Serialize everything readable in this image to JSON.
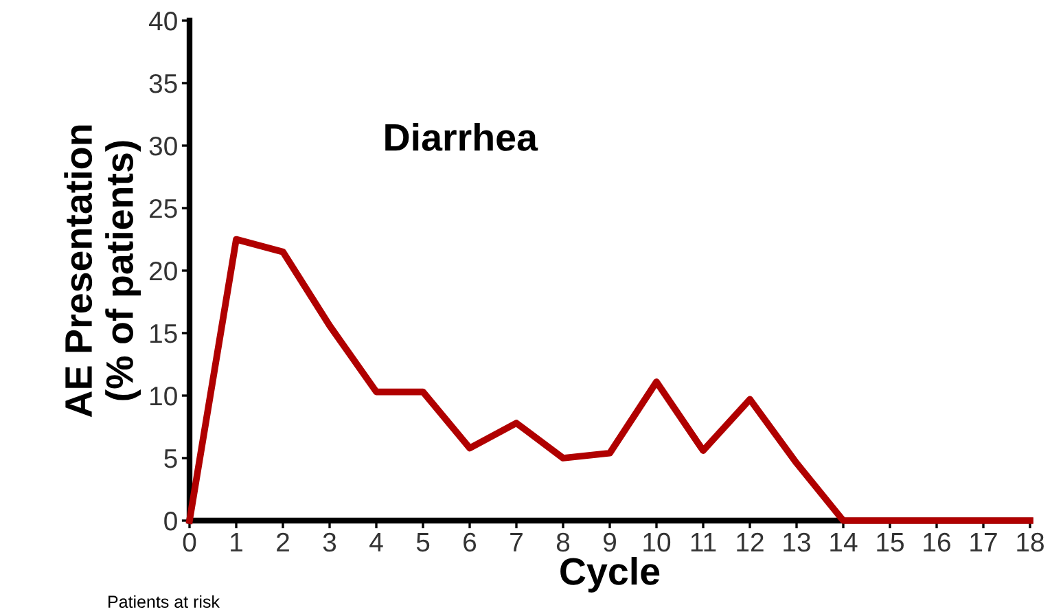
{
  "chart_data": {
    "type": "line",
    "title": "Diarrhea",
    "xlabel": "Cycle",
    "ylabel": "AE Presentation\n(% of patients)",
    "x": [
      0,
      1,
      2,
      3,
      4,
      5,
      6,
      7,
      8,
      9,
      10,
      11,
      12,
      13,
      14,
      15,
      16,
      17,
      18
    ],
    "series": [
      {
        "color": "#b00000",
        "values": [
          0,
          22.5,
          21.5,
          15.6,
          10.3,
          10.3,
          5.8,
          7.8,
          5.0,
          5.4,
          11.1,
          5.6,
          9.7,
          4.6,
          0,
          0,
          0,
          0,
          0
        ]
      }
    ],
    "xlim": [
      0,
      18
    ],
    "xticks": [
      0,
      1,
      2,
      3,
      4,
      5,
      6,
      7,
      8,
      9,
      10,
      11,
      12,
      13,
      14,
      15,
      16,
      17,
      18
    ],
    "ylim": [
      0,
      40
    ],
    "yticks": [
      0,
      5,
      10,
      15,
      20,
      25,
      30,
      35,
      40
    ],
    "grid": false,
    "legend": false,
    "annotations": [
      "Patients at risk"
    ]
  }
}
